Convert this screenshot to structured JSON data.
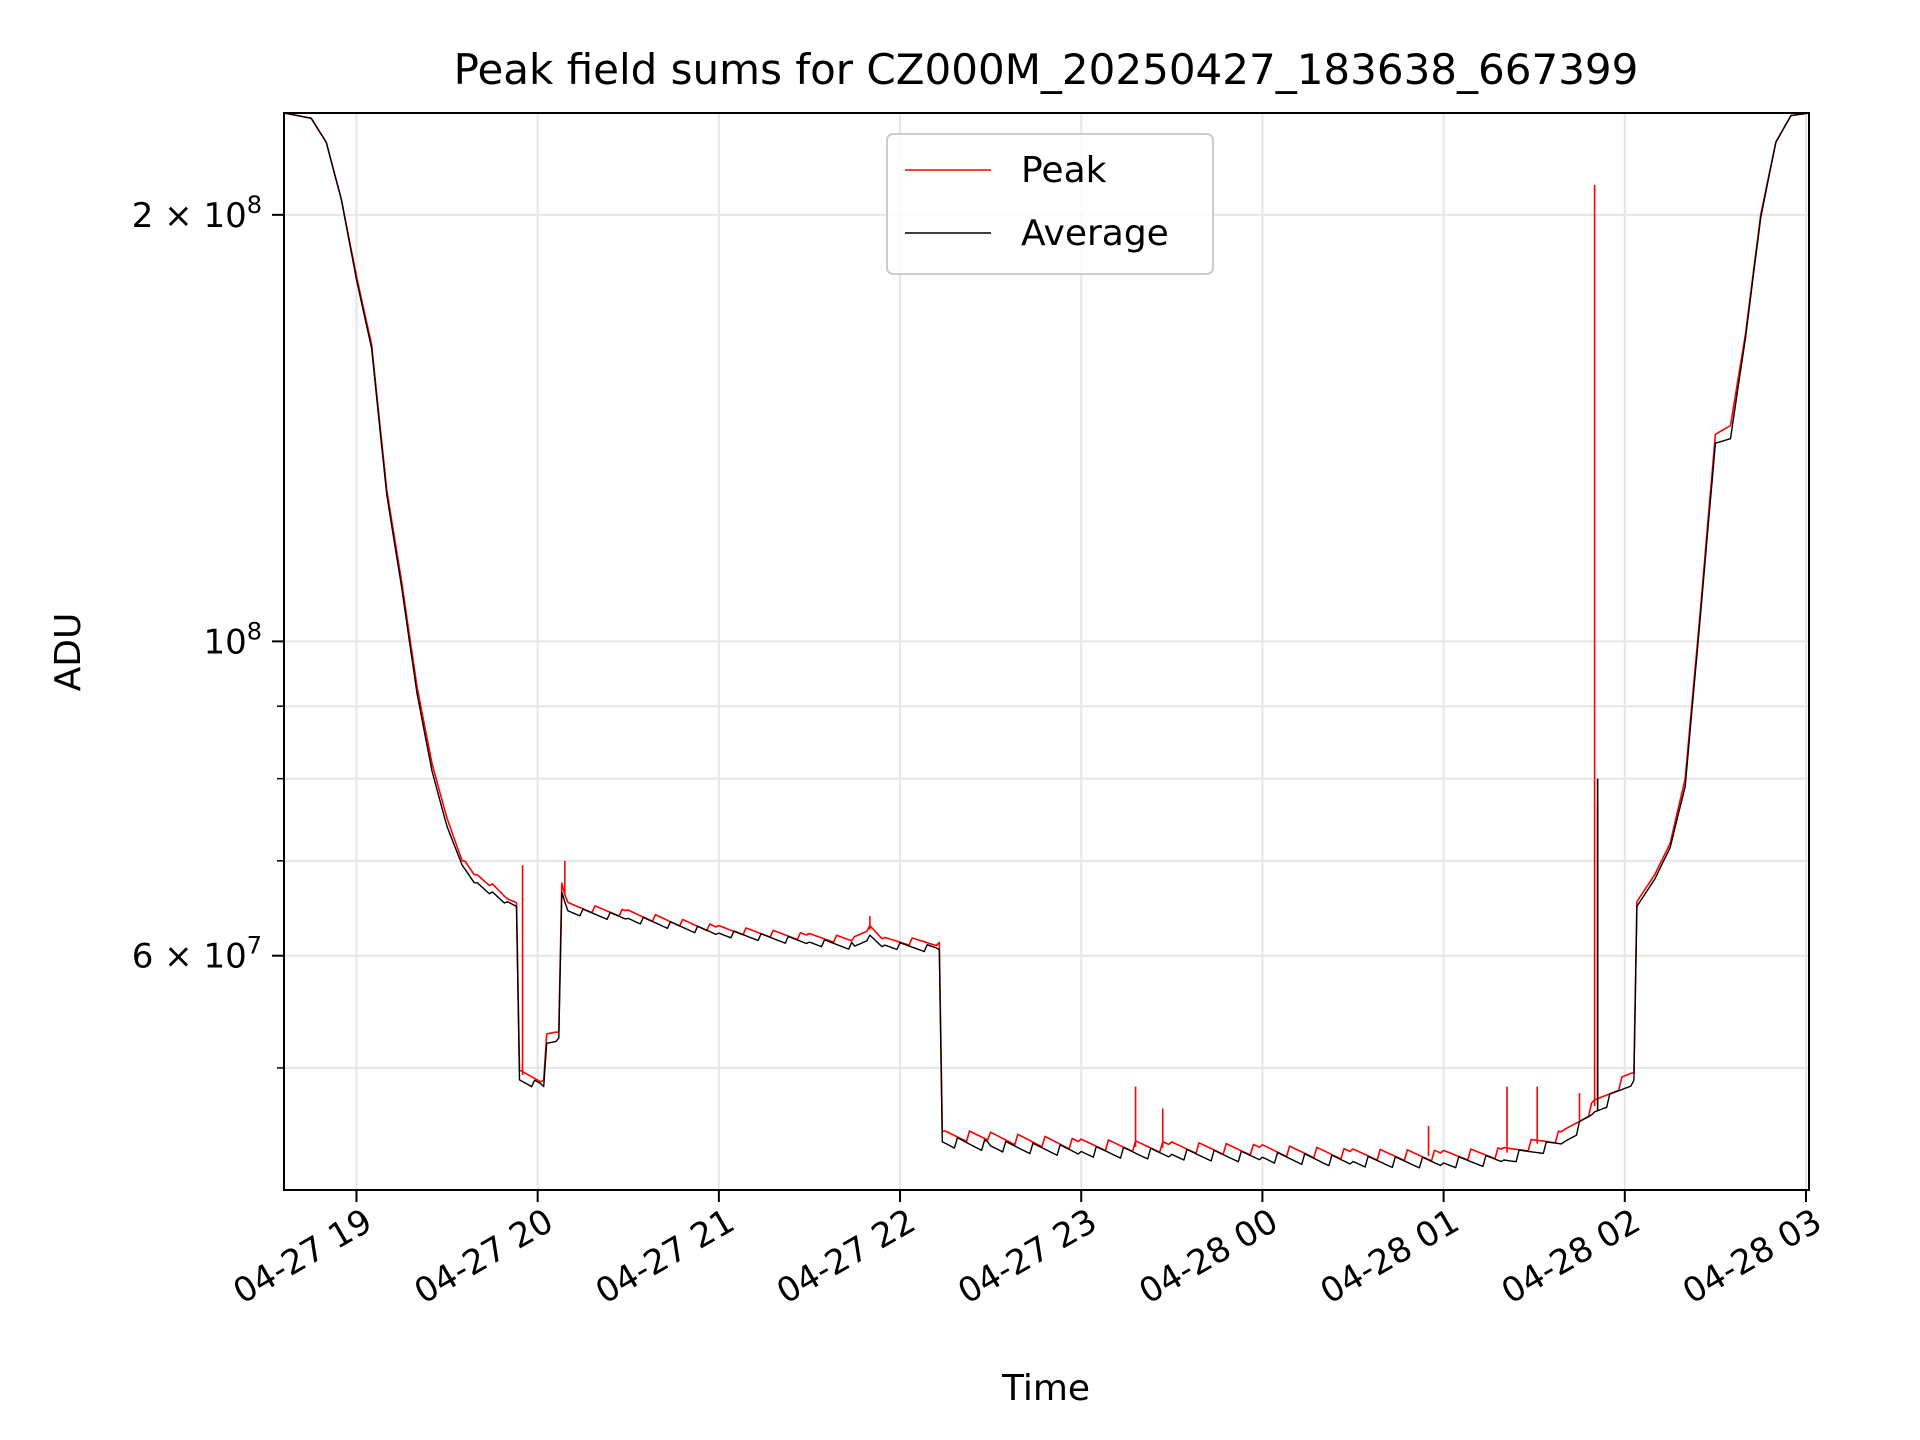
{
  "chart_data": {
    "type": "line",
    "title": "Peak field sums for CZ000M_20250427_183638_667399",
    "xlabel": "Time",
    "ylabel": "ADU",
    "yscale": "log",
    "xlim": [
      "2025-04-27 18:36",
      "2025-04-28 03:01"
    ],
    "ylim": [
      41000000,
      236000000
    ],
    "grid": true,
    "legend_position": "top-center",
    "x_ticks": [
      {
        "value": "2025-04-27 19:00",
        "label": "04-27 19"
      },
      {
        "value": "2025-04-27 20:00",
        "label": "04-27 20"
      },
      {
        "value": "2025-04-27 21:00",
        "label": "04-27 21"
      },
      {
        "value": "2025-04-27 22:00",
        "label": "04-27 22"
      },
      {
        "value": "2025-04-27 23:00",
        "label": "04-27 23"
      },
      {
        "value": "2025-04-28 00:00",
        "label": "04-28 00"
      },
      {
        "value": "2025-04-28 01:00",
        "label": "04-28 01"
      },
      {
        "value": "2025-04-28 02:00",
        "label": "04-28 02"
      },
      {
        "value": "2025-04-28 03:00",
        "label": "04-28 03"
      }
    ],
    "y_ticks": [
      {
        "value": 200000000,
        "base": "2 × 10",
        "exp": "8"
      },
      {
        "value": 100000000,
        "base": "10",
        "exp": "8"
      },
      {
        "value": 60000000,
        "base": "6 × 10",
        "exp": "7"
      }
    ],
    "y_minor_ticks": [
      50000000,
      70000000,
      80000000,
      90000000
    ],
    "series": [
      {
        "name": "Peak",
        "color": "#ff0000",
        "points": [
          [
            "2025-04-27 18:36",
            236000000
          ],
          [
            "2025-04-27 18:45",
            234000000
          ],
          [
            "2025-04-27 18:50",
            225000000
          ],
          [
            "2025-04-27 18:55",
            205000000
          ],
          [
            "2025-04-27 19:00",
            181000000
          ],
          [
            "2025-04-27 19:05",
            162000000
          ],
          [
            "2025-04-27 19:10",
            128000000
          ],
          [
            "2025-04-27 19:15",
            110000000
          ],
          [
            "2025-04-27 19:20",
            93000000
          ],
          [
            "2025-04-27 19:25",
            82000000
          ],
          [
            "2025-04-27 19:30",
            75000000
          ],
          [
            "2025-04-27 19:35",
            70000000
          ],
          [
            "2025-04-27 19:40",
            68000000
          ],
          [
            "2025-04-27 19:45",
            67000000
          ],
          [
            "2025-04-27 19:50",
            65800000
          ],
          [
            "2025-04-27 19:53",
            65400000
          ],
          [
            "2025-04-27 19:54",
            49500000
          ],
          [
            "2025-04-27 20:02",
            49000000
          ],
          [
            "2025-04-27 20:03",
            52500000
          ],
          [
            "2025-04-27 20:07",
            53000000
          ],
          [
            "2025-04-27 20:08",
            67500000
          ],
          [
            "2025-04-27 20:10",
            65000000
          ],
          [
            "2025-04-27 20:30",
            64200000
          ],
          [
            "2025-04-27 21:00",
            62600000
          ],
          [
            "2025-04-27 21:30",
            61800000
          ],
          [
            "2025-04-27 21:45",
            61500000
          ],
          [
            "2025-04-27 21:50",
            62600000
          ],
          [
            "2025-04-27 21:55",
            61400000
          ],
          [
            "2025-04-27 22:13",
            61300000
          ],
          [
            "2025-04-27 22:14",
            44800000
          ],
          [
            "2025-04-27 22:30",
            44600000
          ],
          [
            "2025-04-27 23:00",
            44100000
          ],
          [
            "2025-04-27 23:30",
            43900000
          ],
          [
            "2025-04-28 00:00",
            43700000
          ],
          [
            "2025-04-28 00:30",
            43400000
          ],
          [
            "2025-04-28 01:00",
            43300000
          ],
          [
            "2025-04-28 01:20",
            43500000
          ],
          [
            "2025-04-28 01:40",
            44800000
          ],
          [
            "2025-04-28 01:50",
            47000000
          ],
          [
            "2025-04-28 02:03",
            49600000
          ],
          [
            "2025-04-28 02:04",
            65500000
          ],
          [
            "2025-04-28 02:10",
            68500000
          ],
          [
            "2025-04-28 02:15",
            72000000
          ],
          [
            "2025-04-28 02:20",
            80000000
          ],
          [
            "2025-04-28 02:25",
            105000000
          ],
          [
            "2025-04-28 02:30",
            140000000
          ],
          [
            "2025-04-28 02:35",
            142000000
          ],
          [
            "2025-04-28 02:40",
            165000000
          ],
          [
            "2025-04-28 02:45",
            200000000
          ],
          [
            "2025-04-28 02:50",
            225000000
          ],
          [
            "2025-04-28 02:55",
            235000000
          ],
          [
            "2025-04-28 03:01",
            236000000
          ]
        ],
        "spikes": [
          [
            "2025-04-27 19:55",
            69500000
          ],
          [
            "2025-04-27 20:09",
            70000000
          ],
          [
            "2025-04-27 21:50",
            64000000
          ],
          [
            "2025-04-27 23:18",
            48500000
          ],
          [
            "2025-04-27 23:27",
            46800000
          ],
          [
            "2025-04-28 00:55",
            45500000
          ],
          [
            "2025-04-28 01:21",
            48500000
          ],
          [
            "2025-04-28 01:31",
            48500000
          ],
          [
            "2025-04-28 01:45",
            48000000
          ],
          [
            "2025-04-28 01:50",
            210000000
          ],
          [
            "2025-04-28 01:51",
            77000000
          ]
        ]
      },
      {
        "name": "Average",
        "color": "#000000",
        "points": [
          [
            "2025-04-27 18:36",
            236000000
          ],
          [
            "2025-04-27 18:45",
            234000000
          ],
          [
            "2025-04-27 18:50",
            225000000
          ],
          [
            "2025-04-27 18:55",
            205000000
          ],
          [
            "2025-04-27 19:00",
            180000000
          ],
          [
            "2025-04-27 19:05",
            161000000
          ],
          [
            "2025-04-27 19:10",
            127000000
          ],
          [
            "2025-04-27 19:15",
            109000000
          ],
          [
            "2025-04-27 19:20",
            92000000
          ],
          [
            "2025-04-27 19:25",
            81000000
          ],
          [
            "2025-04-27 19:30",
            74000000
          ],
          [
            "2025-04-27 19:35",
            69500000
          ],
          [
            "2025-04-27 19:40",
            67500000
          ],
          [
            "2025-04-27 19:45",
            66500000
          ],
          [
            "2025-04-27 19:50",
            65500000
          ],
          [
            "2025-04-27 19:53",
            65000000
          ],
          [
            "2025-04-27 19:54",
            49000000
          ],
          [
            "2025-04-27 20:02",
            48500000
          ],
          [
            "2025-04-27 20:03",
            52000000
          ],
          [
            "2025-04-27 20:07",
            52500000
          ],
          [
            "2025-04-27 20:08",
            66500000
          ],
          [
            "2025-04-27 20:10",
            64500000
          ],
          [
            "2025-04-27 20:30",
            63700000
          ],
          [
            "2025-04-27 21:00",
            62200000
          ],
          [
            "2025-04-27 21:30",
            61300000
          ],
          [
            "2025-04-27 21:45",
            60900000
          ],
          [
            "2025-04-27 21:50",
            62000000
          ],
          [
            "2025-04-27 21:55",
            61000000
          ],
          [
            "2025-04-27 22:13",
            60600000
          ],
          [
            "2025-04-27 22:14",
            44300000
          ],
          [
            "2025-04-27 22:30",
            44000000
          ],
          [
            "2025-04-27 23:00",
            43600000
          ],
          [
            "2025-04-27 23:30",
            43400000
          ],
          [
            "2025-04-28 00:00",
            43200000
          ],
          [
            "2025-04-28 00:30",
            42900000
          ],
          [
            "2025-04-28 01:00",
            42800000
          ],
          [
            "2025-04-28 01:20",
            43000000
          ],
          [
            "2025-04-28 01:40",
            44300000
          ],
          [
            "2025-04-28 01:50",
            46500000
          ],
          [
            "2025-04-28 02:03",
            49000000
          ],
          [
            "2025-04-28 02:04",
            65000000
          ],
          [
            "2025-04-28 02:10",
            68000000
          ],
          [
            "2025-04-28 02:15",
            71500000
          ],
          [
            "2025-04-28 02:20",
            79000000
          ],
          [
            "2025-04-28 02:25",
            104000000
          ],
          [
            "2025-04-28 02:30",
            138000000
          ],
          [
            "2025-04-28 02:35",
            139000000
          ],
          [
            "2025-04-28 02:40",
            164000000
          ],
          [
            "2025-04-28 02:45",
            199000000
          ],
          [
            "2025-04-28 02:50",
            225000000
          ],
          [
            "2025-04-28 02:55",
            235000000
          ],
          [
            "2025-04-28 03:01",
            236000000
          ]
        ],
        "spikes": [
          [
            "2025-04-28 01:51",
            80000000
          ]
        ]
      }
    ]
  }
}
